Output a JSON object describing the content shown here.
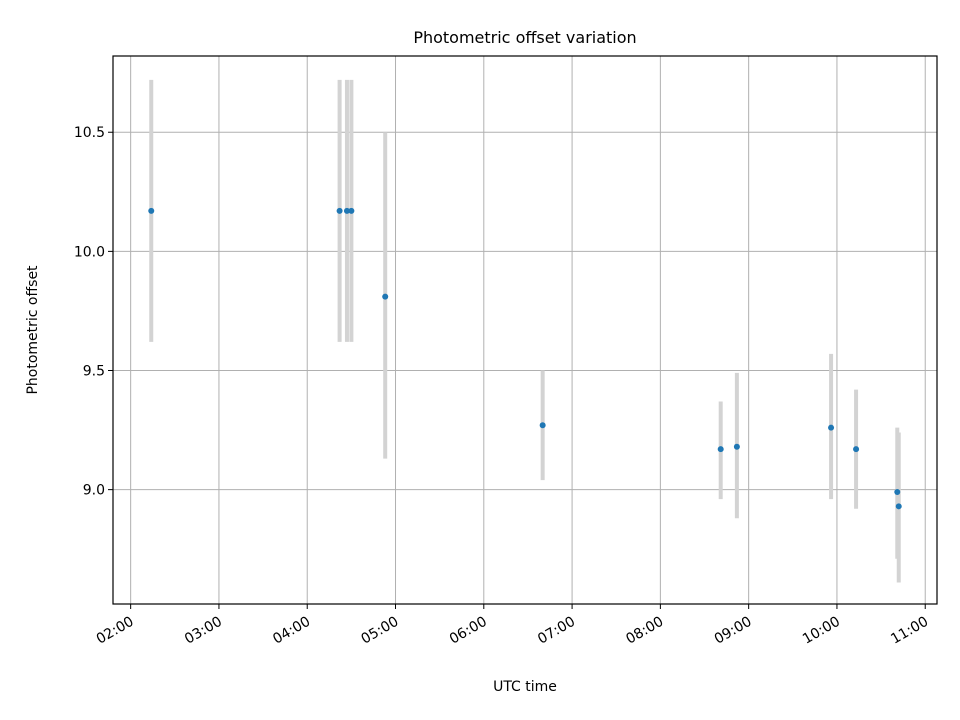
{
  "chart_data": {
    "type": "scatter",
    "title": "Photometric offset variation",
    "xlabel": "UTC time",
    "ylabel": "Photometric offset",
    "x_ticks": [
      "02:00",
      "03:00",
      "04:00",
      "05:00",
      "06:00",
      "07:00",
      "08:00",
      "09:00",
      "10:00",
      "11:00"
    ],
    "y_ticks": [
      "9.0",
      "9.5",
      "10.0",
      "10.5"
    ],
    "xlim": [
      "01:48",
      "11:08"
    ],
    "ylim": [
      8.52,
      10.82
    ],
    "grid": true,
    "colors": {
      "points": "#1f77b4",
      "errorbars": "#d3d3d3",
      "grid": "#b0b0b0"
    },
    "points": [
      {
        "x": "02:14",
        "y": 10.17,
        "ylow": 9.62,
        "yhigh": 10.72
      },
      {
        "x": "04:22",
        "y": 10.17,
        "ylow": 9.62,
        "yhigh": 10.72
      },
      {
        "x": "04:27",
        "y": 10.17,
        "ylow": 9.62,
        "yhigh": 10.72
      },
      {
        "x": "04:30",
        "y": 10.17,
        "ylow": 9.62,
        "yhigh": 10.72
      },
      {
        "x": "04:53",
        "y": 9.81,
        "ylow": 9.13,
        "yhigh": 10.5
      },
      {
        "x": "06:40",
        "y": 9.27,
        "ylow": 9.04,
        "yhigh": 9.5
      },
      {
        "x": "08:41",
        "y": 9.17,
        "ylow": 8.96,
        "yhigh": 9.37
      },
      {
        "x": "08:52",
        "y": 9.18,
        "ylow": 8.88,
        "yhigh": 9.49
      },
      {
        "x": "09:56",
        "y": 9.26,
        "ylow": 8.96,
        "yhigh": 9.57
      },
      {
        "x": "10:13",
        "y": 9.17,
        "ylow": 8.92,
        "yhigh": 9.42
      },
      {
        "x": "10:41",
        "y": 8.99,
        "ylow": 8.71,
        "yhigh": 9.26
      },
      {
        "x": "10:42",
        "y": 8.93,
        "ylow": 8.61,
        "yhigh": 9.24
      }
    ]
  }
}
